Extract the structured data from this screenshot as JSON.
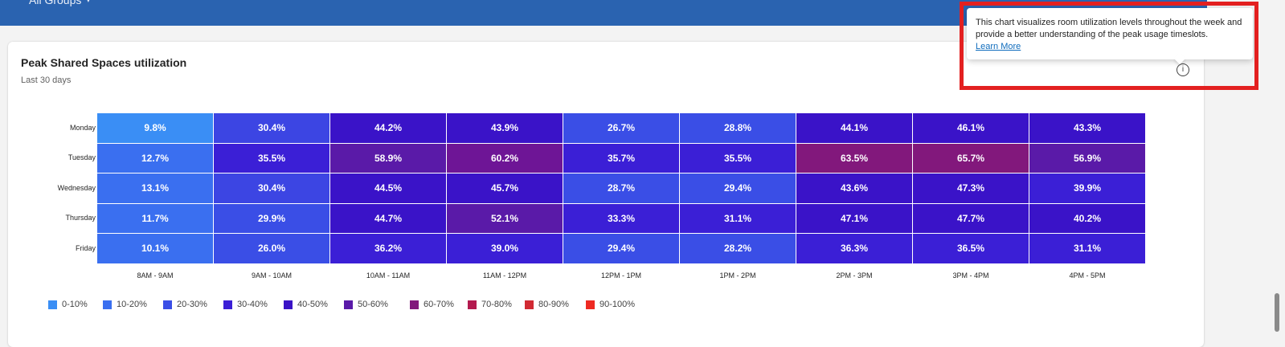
{
  "header": {
    "group_label": "All Groups",
    "chevron_icon": "chevron-down-icon",
    "color": "#2a63b0"
  },
  "card": {
    "title": "Peak Shared Spaces utilization",
    "subtitle": "Last 30 days",
    "info_icon": "info-icon",
    "info_glyph": "i"
  },
  "tooltip": {
    "text": "This chart visualizes room utilization levels throughout the week and provide a better understanding of the peak usage timeslots.",
    "link": "Learn More"
  },
  "chart_data": {
    "type": "heatmap",
    "title": "Peak Shared Spaces utilization",
    "rows": [
      "Monday",
      "Tuesday",
      "Wednesday",
      "Thursday",
      "Friday"
    ],
    "columns": [
      "8AM - 9AM",
      "9AM - 10AM",
      "10AM - 11AM",
      "11AM - 12PM",
      "12PM - 1PM",
      "1PM - 2PM",
      "2PM - 3PM",
      "3PM - 4PM",
      "4PM - 5PM"
    ],
    "values": [
      [
        9.8,
        30.4,
        44.2,
        43.9,
        26.7,
        28.8,
        44.1,
        46.1,
        43.3
      ],
      [
        12.7,
        35.5,
        58.9,
        60.2,
        35.7,
        35.5,
        63.5,
        65.7,
        56.9
      ],
      [
        13.1,
        30.4,
        44.5,
        45.7,
        28.7,
        29.4,
        43.6,
        47.3,
        39.9
      ],
      [
        11.7,
        29.9,
        44.7,
        52.1,
        33.3,
        31.1,
        47.1,
        47.7,
        40.2
      ],
      [
        10.1,
        26.0,
        36.2,
        39.0,
        29.4,
        28.2,
        36.3,
        36.5,
        31.1
      ]
    ],
    "value_suffix": "%",
    "legend": [
      {
        "label": "0-10%",
        "color": "#3a8ef5"
      },
      {
        "label": "10-20%",
        "color": "#3a6ff0"
      },
      {
        "label": "20-30%",
        "color": "#3a4ee6"
      },
      {
        "label": "30-40%",
        "color": "#3b1fd6"
      },
      {
        "label": "40-50%",
        "color": "#3a12c6"
      },
      {
        "label": "50-60%",
        "color": "#5a1aa8"
      },
      {
        "label": "60-70%",
        "color": "#82187c"
      },
      {
        "label": "70-80%",
        "color": "#b31a4f"
      },
      {
        "label": "80-90%",
        "color": "#d12a33"
      },
      {
        "label": "90-100%",
        "color": "#ee2a22"
      }
    ],
    "cell_colors": [
      [
        "#3a8ef5",
        "#3c45e3",
        "#3a13c8",
        "#3a13c8",
        "#3a4ee6",
        "#3a4ee6",
        "#3a13c8",
        "#3a13c8",
        "#3a13c8"
      ],
      [
        "#3a6ff0",
        "#3b1fd6",
        "#5a1aa8",
        "#6e1596",
        "#3b1fd6",
        "#3b1fd6",
        "#82187c",
        "#82187c",
        "#5a1aa8"
      ],
      [
        "#3a6ff0",
        "#3c45e3",
        "#3a13c8",
        "#3a13c8",
        "#3a4ee6",
        "#3a4ee6",
        "#3a13c8",
        "#3a13c8",
        "#3b1fd6"
      ],
      [
        "#3a6ff0",
        "#3a4ee6",
        "#3a13c8",
        "#5a1aa8",
        "#3b1fd6",
        "#3b1fd6",
        "#3a13c8",
        "#3a13c8",
        "#3a13c8"
      ],
      [
        "#3a6ff0",
        "#3a4ee6",
        "#3b1fd6",
        "#3b1fd6",
        "#3a4ee6",
        "#3a4ee6",
        "#3b1fd6",
        "#3b1fd6",
        "#3b1fd6"
      ]
    ]
  }
}
